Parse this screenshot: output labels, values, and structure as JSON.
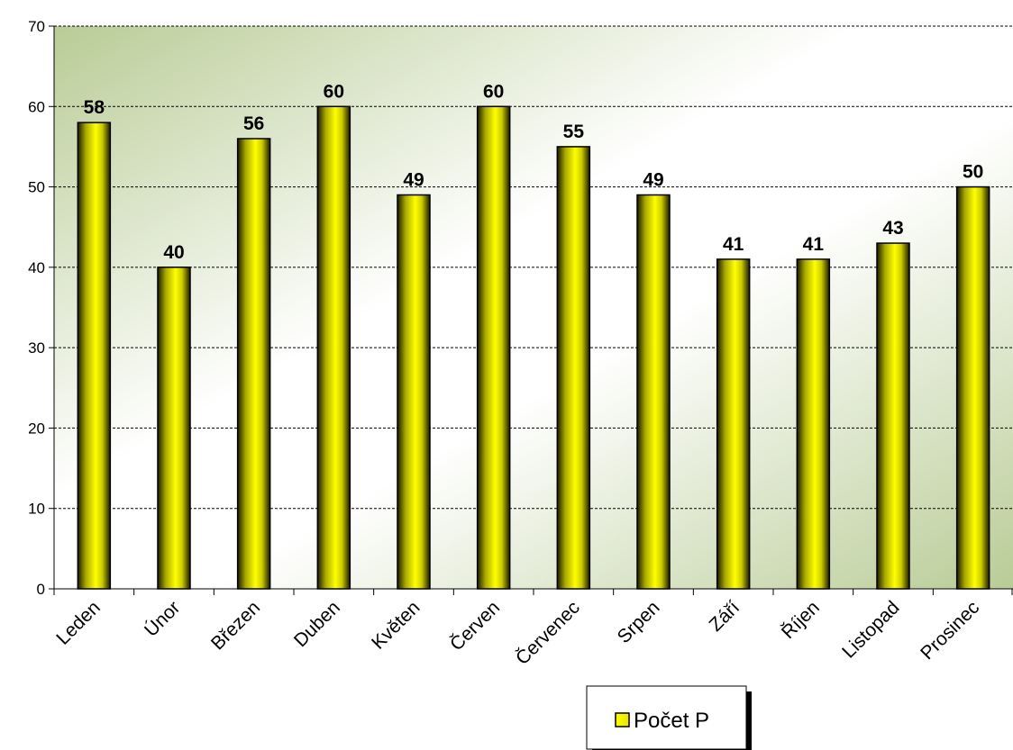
{
  "chart_data": {
    "type": "bar",
    "categories": [
      "Leden",
      "Únor",
      "Březen",
      "Duben",
      "Květen",
      "Červen",
      "Červenec",
      "Srpen",
      "Září",
      "Říjen",
      "Listopad",
      "Prosinec"
    ],
    "series": [
      {
        "name": "Počet P",
        "values": [
          58,
          40,
          56,
          60,
          49,
          60,
          55,
          49,
          41,
          41,
          43,
          50
        ]
      }
    ],
    "title": "",
    "xlabel": "",
    "ylabel": "",
    "ylim": [
      0,
      70
    ],
    "yticks": [
      0,
      10,
      20,
      30,
      40,
      50,
      60,
      70
    ],
    "grid": true,
    "data_labels": true,
    "legend": "bottom-center",
    "colors": {
      "bar_light": "#ffff00",
      "bar_dark": "#1a1a00",
      "plot_bg_green": "#b9cc96",
      "plot_bg_white": "#ffffff",
      "grid": "#000000"
    }
  }
}
